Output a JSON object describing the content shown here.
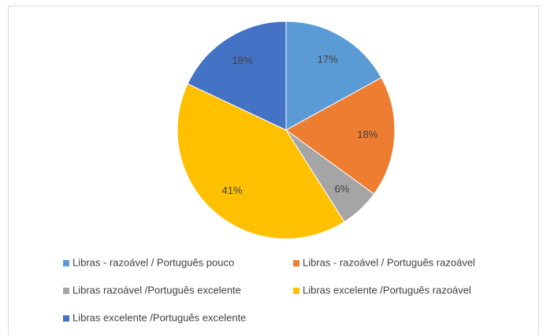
{
  "chart_data": {
    "type": "pie",
    "categories": [
      "Libras - razoável / Português pouco",
      "Libras - razoável / Português razoável",
      "Libras razoável /Português excelente",
      "Libras excelente  /Português razoável",
      "Libras excelente /Português excelente"
    ],
    "values": [
      17,
      18,
      6,
      41,
      18
    ],
    "value_labels": [
      "17%",
      "18%",
      "6%",
      "41%",
      "18%"
    ],
    "colors": [
      "#5b9bd5",
      "#ed7d31",
      "#a5a5a5",
      "#ffc000",
      "#4472c4"
    ],
    "legend": "bottom"
  }
}
